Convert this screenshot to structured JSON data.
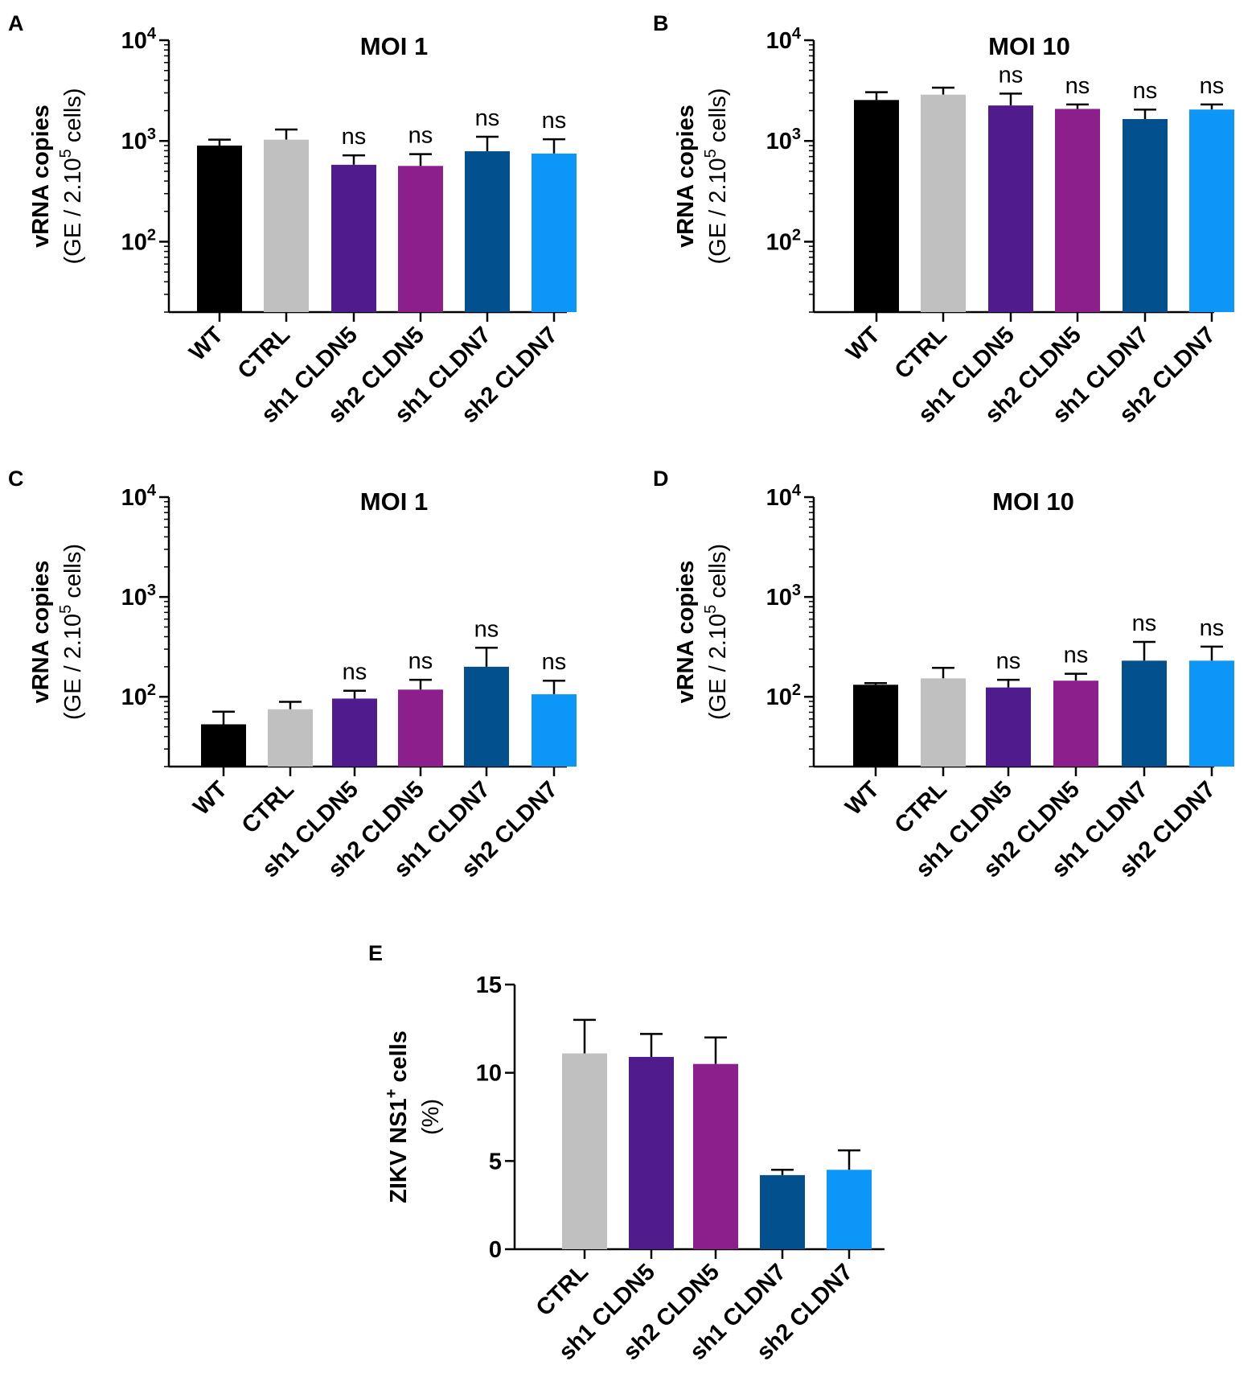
{
  "colors": {
    "WT": "#000000",
    "CTRL": "#c0c0c0",
    "sh1 CLDN5": "#4f1b8d",
    "sh2 CLDN5": "#8c1f8b",
    "sh1 CLDN7": "#02508e",
    "sh2 CLDN7": "#0b96f8"
  },
  "chart_data": [
    {
      "panel": "A",
      "type": "bar",
      "title": "MOI 1",
      "scale": "log",
      "ylabel": "vRNA copies",
      "ylabel_unit": "(GE / 2.10",
      "ylabel_unit_sup": "5",
      "ylabel_unit_end": " cells)",
      "ylim": [
        20,
        10000
      ],
      "yticks": [
        {
          "value": 100,
          "base": "10",
          "exp": "2"
        },
        {
          "value": 1000,
          "base": "10",
          "exp": "3"
        },
        {
          "value": 10000,
          "base": "10",
          "exp": "4"
        }
      ],
      "categories": [
        "WT",
        "CTRL",
        "sh1 CLDN5",
        "sh2 CLDN5",
        "sh1 CLDN7",
        "sh2 CLDN7"
      ],
      "values": [
        900,
        1030,
        580,
        565,
        790,
        750
      ],
      "errors": [
        1030,
        1300,
        720,
        740,
        1100,
        1040
      ],
      "annotations": [
        "",
        "",
        "ns",
        "ns",
        "ns",
        "ns"
      ]
    },
    {
      "panel": "B",
      "type": "bar",
      "title": "MOI 10",
      "scale": "log",
      "ylabel": "vRNA copies",
      "ylabel_unit": "(GE / 2.10",
      "ylabel_unit_sup": "5",
      "ylabel_unit_end": " cells)",
      "ylim": [
        20,
        10000
      ],
      "yticks": [
        {
          "value": 100,
          "base": "10",
          "exp": "2"
        },
        {
          "value": 1000,
          "base": "10",
          "exp": "3"
        },
        {
          "value": 10000,
          "base": "10",
          "exp": "4"
        }
      ],
      "categories": [
        "WT",
        "CTRL",
        "sh1 CLDN5",
        "sh2 CLDN5",
        "sh1 CLDN7",
        "sh2 CLDN7"
      ],
      "values": [
        2550,
        2880,
        2250,
        2080,
        1650,
        2050
      ],
      "errors": [
        3050,
        3380,
        2950,
        2300,
        2050,
        2300
      ],
      "annotations": [
        "",
        "",
        "ns",
        "ns",
        "ns",
        "ns"
      ]
    },
    {
      "panel": "C",
      "type": "bar",
      "title": "MOI 1",
      "scale": "log",
      "ylabel": "vRNA copies",
      "ylabel_unit": "(GE / 2.10",
      "ylabel_unit_sup": "5",
      "ylabel_unit_end": " cells)",
      "ylim": [
        20,
        10000
      ],
      "yticks": [
        {
          "value": 100,
          "base": "10",
          "exp": "2"
        },
        {
          "value": 1000,
          "base": "10",
          "exp": "3"
        },
        {
          "value": 10000,
          "base": "10",
          "exp": "4"
        }
      ],
      "categories": [
        "WT",
        "CTRL",
        "sh1 CLDN5",
        "sh2 CLDN5",
        "sh1 CLDN7",
        "sh2 CLDN7"
      ],
      "values": [
        53,
        75,
        96,
        118,
        200,
        106
      ],
      "errors": [
        71,
        89,
        115,
        148,
        310,
        145
      ],
      "annotations": [
        "",
        "",
        "ns",
        "ns",
        "ns",
        "ns"
      ]
    },
    {
      "panel": "D",
      "type": "bar",
      "title": "MOI 10",
      "scale": "log",
      "ylabel": "vRNA copies",
      "ylabel_unit": "(GE / 2.10",
      "ylabel_unit_sup": "5",
      "ylabel_unit_end": " cells)",
      "ylim": [
        20,
        10000
      ],
      "yticks": [
        {
          "value": 100,
          "base": "10",
          "exp": "2"
        },
        {
          "value": 1000,
          "base": "10",
          "exp": "3"
        },
        {
          "value": 10000,
          "base": "10",
          "exp": "4"
        }
      ],
      "categories": [
        "WT",
        "CTRL",
        "sh1 CLDN5",
        "sh2 CLDN5",
        "sh1 CLDN7",
        "sh2 CLDN7"
      ],
      "values": [
        132,
        153,
        124,
        145,
        230,
        230
      ],
      "errors": [
        137,
        195,
        148,
        170,
        355,
        318
      ],
      "annotations": [
        "",
        "",
        "ns",
        "ns",
        "ns",
        "ns"
      ]
    },
    {
      "panel": "E",
      "type": "bar",
      "title": "",
      "scale": "linear",
      "ylabel": "ZIKV NS1",
      "ylabel_sup": "+",
      "ylabel_end": " cells",
      "ylabel_unit": "(%)",
      "ylim": [
        0,
        15
      ],
      "yticks": [
        {
          "value": 0,
          "label": "0"
        },
        {
          "value": 5,
          "label": "5"
        },
        {
          "value": 10,
          "label": "10"
        },
        {
          "value": 15,
          "label": "15"
        }
      ],
      "categories": [
        "CTRL",
        "sh1 CLDN5",
        "sh2 CLDN5",
        "sh1 CLDN7",
        "sh2 CLDN7"
      ],
      "values": [
        11.1,
        10.9,
        10.5,
        4.2,
        4.5
      ],
      "errors": [
        13.0,
        12.2,
        12.0,
        4.5,
        5.6
      ],
      "annotations": [
        "",
        "",
        "",
        "",
        ""
      ]
    }
  ]
}
